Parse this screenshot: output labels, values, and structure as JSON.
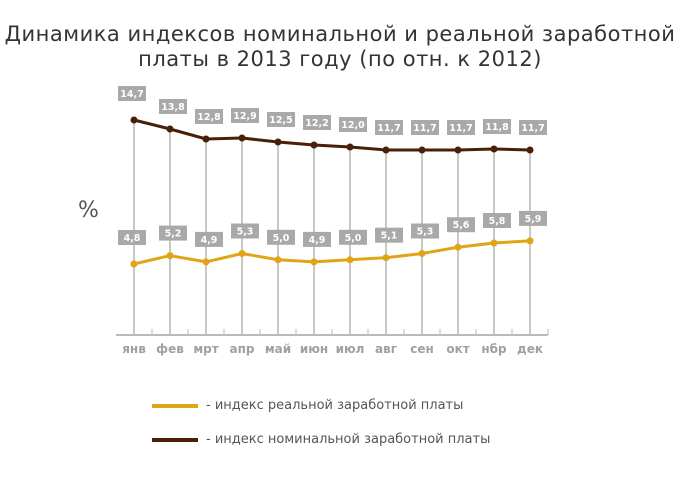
{
  "chart_data": {
    "type": "line",
    "title": "Динамика индексов номинальной и реальной заработной платы в 2013 году (по отн. к 2012)",
    "ylabel": "%",
    "categories": [
      "янв",
      "фев",
      "мрт",
      "апр",
      "май",
      "июн",
      "июл",
      "авг",
      "сен",
      "окт",
      "нбр",
      "дек"
    ],
    "series": [
      {
        "name": "- индекс номинальной заработной платы",
        "color": "#4a1f08",
        "values": [
          14.7,
          13.8,
          12.8,
          12.9,
          12.5,
          12.2,
          12.0,
          11.7,
          11.7,
          11.7,
          11.8,
          11.7
        ],
        "labels": [
          "14,7",
          "13,8",
          "12,8",
          "12,9",
          "12,5",
          "12,2",
          "12,0",
          "11,7",
          "11,7",
          "11,7",
          "11,8",
          "11,7"
        ]
      },
      {
        "name": "- индекс реальной заработной платы",
        "color": "#e0a514",
        "values": [
          4.8,
          5.2,
          4.9,
          5.3,
          5.0,
          4.9,
          5.0,
          5.1,
          5.3,
          5.6,
          5.8,
          5.9
        ],
        "labels": [
          "4,8",
          "5,2",
          "4,9",
          "5,3",
          "5,0",
          "4,9",
          "5,0",
          "5,1",
          "5,3",
          "5,6",
          "5,8",
          "5,9"
        ]
      }
    ],
    "legend": "bottom"
  }
}
